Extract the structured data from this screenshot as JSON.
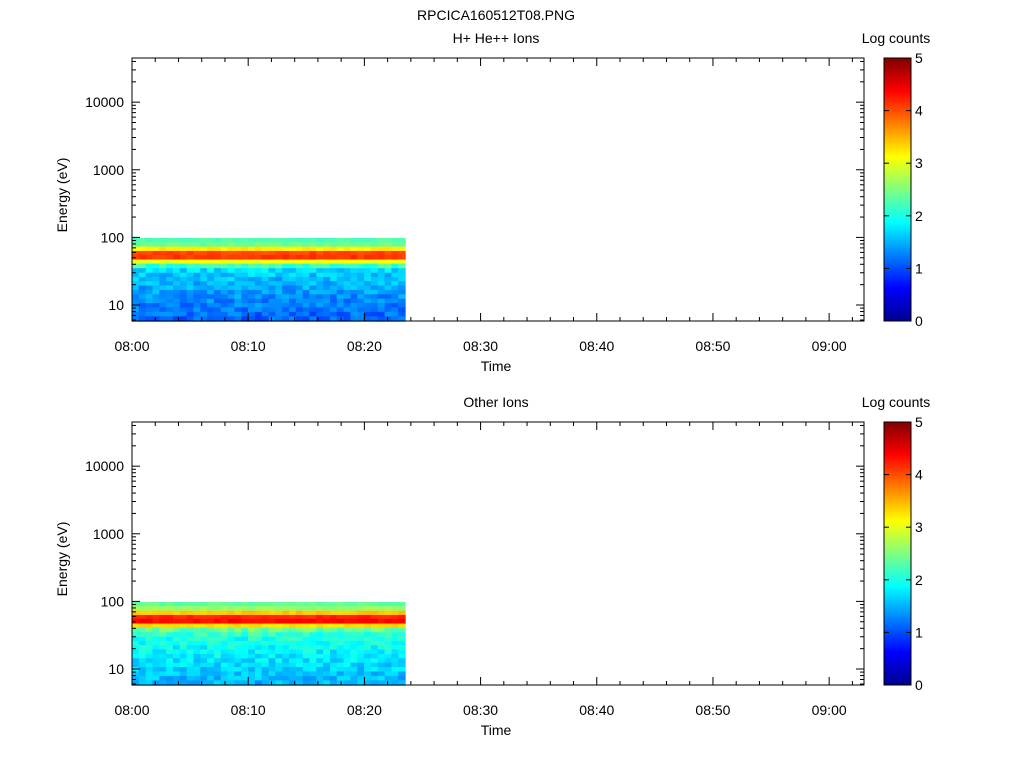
{
  "figure_title": "RPCICA160512T08.PNG",
  "chart_data": [
    {
      "type": "heatmap",
      "title": "H+ He++ Ions",
      "xlabel": "Time",
      "ylabel": "Energy (eV)",
      "yscale": "log",
      "xlim": [
        "08:00",
        "09:03"
      ],
      "ylim": [
        5.8,
        45000
      ],
      "xticks": [
        "08:00",
        "08:10",
        "08:20",
        "08:30",
        "08:40",
        "08:50",
        "09:00"
      ],
      "yticks": [
        10,
        100,
        1000,
        10000
      ],
      "yticklabels": [
        "10",
        "100",
        "1000",
        "10000"
      ],
      "data_extent": {
        "time_start": "08:00",
        "time_end": "08:23.5",
        "energy_min": 5.8,
        "energy_max": 98
      },
      "energy_bins": [
        98,
        85,
        73,
        63,
        55,
        47,
        41,
        35,
        30,
        26,
        22.5,
        19.4,
        16.7,
        14.4,
        12.4,
        10.7,
        9.2,
        7.9,
        6.8,
        5.8
      ],
      "time_bins": 40,
      "profile_log_counts": [
        2.25,
        2.4,
        3.2,
        4.05,
        4.1,
        3.05,
        2.15,
        1.7,
        1.6,
        1.55,
        1.5,
        1.45,
        1.4,
        1.35,
        1.3,
        1.25,
        1.2,
        1.15,
        1.1,
        1.05
      ],
      "colorbar": {
        "label": "Log counts",
        "min": 0,
        "max": 5,
        "ticks": [
          0,
          1,
          2,
          3,
          4,
          5
        ],
        "colormap": "jet"
      },
      "grid": false
    },
    {
      "type": "heatmap",
      "title": "Other Ions",
      "xlabel": "Time",
      "ylabel": "Energy (eV)",
      "yscale": "log",
      "xlim": [
        "08:00",
        "09:03"
      ],
      "ylim": [
        5.8,
        45000
      ],
      "xticks": [
        "08:00",
        "08:10",
        "08:20",
        "08:30",
        "08:40",
        "08:50",
        "09:00"
      ],
      "yticks": [
        10,
        100,
        1000,
        10000
      ],
      "yticklabels": [
        "10",
        "100",
        "1000",
        "10000"
      ],
      "data_extent": {
        "time_start": "08:00",
        "time_end": "08:23.5",
        "energy_min": 5.8,
        "energy_max": 98
      },
      "energy_bins": [
        98,
        85,
        73,
        63,
        55,
        47,
        41,
        35,
        30,
        26,
        22.5,
        19.4,
        16.7,
        14.4,
        12.4,
        10.7,
        9.2,
        7.9,
        6.8,
        5.8
      ],
      "time_bins": 40,
      "profile_log_counts": [
        2.35,
        2.6,
        3.4,
        4.2,
        4.35,
        3.3,
        2.4,
        2.1,
        2.0,
        1.95,
        1.9,
        1.85,
        1.8,
        1.75,
        1.7,
        1.65,
        1.6,
        1.55,
        1.5,
        1.45
      ],
      "colorbar": {
        "label": "Log counts",
        "min": 0,
        "max": 5,
        "ticks": [
          0,
          1,
          2,
          3,
          4,
          5
        ],
        "colormap": "jet"
      },
      "grid": false
    }
  ]
}
